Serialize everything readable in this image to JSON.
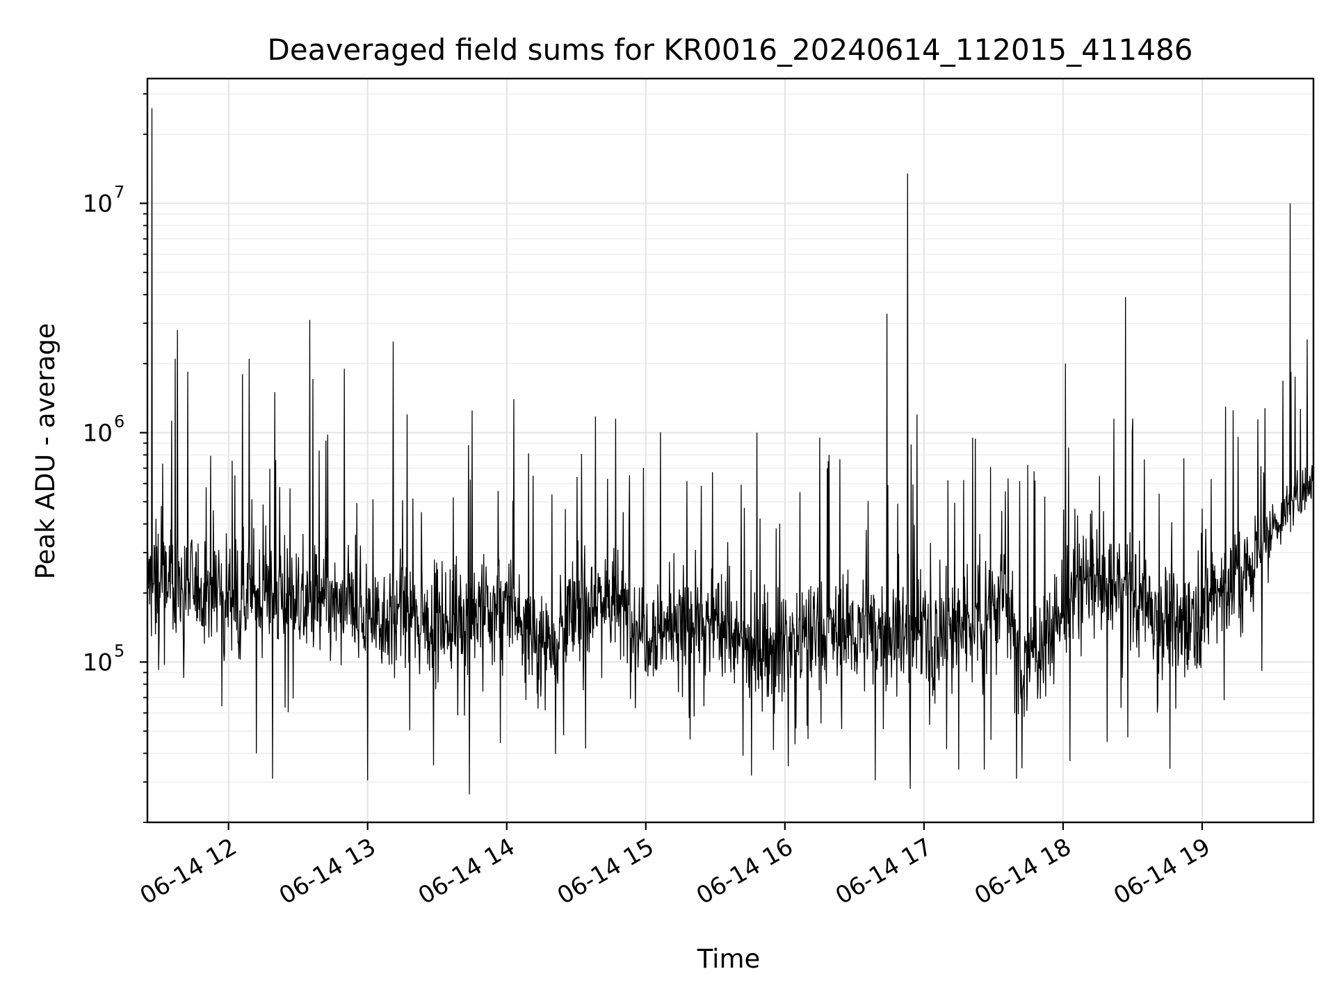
{
  "chart_data": {
    "type": "line",
    "title": "Deaveraged field sums for KR0016_20240614_112015_411486",
    "xlabel": "Time",
    "ylabel": "Peak ADU - average",
    "yscale": "log",
    "ylim": [
      20000,
      35000000
    ],
    "xlim": [
      "2024-06-14 11:25",
      "2024-06-14 19:48"
    ],
    "grid": true,
    "line_color": "#000000",
    "x_ticks": [
      {
        "time": "2024-06-14 12:00",
        "label": "06-14 12"
      },
      {
        "time": "2024-06-14 13:00",
        "label": "06-14 13"
      },
      {
        "time": "2024-06-14 14:00",
        "label": "06-14 14"
      },
      {
        "time": "2024-06-14 15:00",
        "label": "06-14 15"
      },
      {
        "time": "2024-06-14 16:00",
        "label": "06-14 16"
      },
      {
        "time": "2024-06-14 17:00",
        "label": "06-14 17"
      },
      {
        "time": "2024-06-14 18:00",
        "label": "06-14 18"
      },
      {
        "time": "2024-06-14 19:00",
        "label": "06-14 19"
      }
    ],
    "y_ticks": [
      {
        "value": 100000,
        "base": "10",
        "exp": "5"
      },
      {
        "value": 1000000,
        "base": "10",
        "exp": "6"
      },
      {
        "value": 10000000,
        "base": "10",
        "exp": "7"
      }
    ],
    "series": [
      {
        "baseline": [
          [
            "2024-06-14 11:25",
            230000
          ],
          [
            "2024-06-14 11:45",
            210000
          ],
          [
            "2024-06-14 12:05",
            200000
          ],
          [
            "2024-06-14 12:30",
            190000
          ],
          [
            "2024-06-14 13:00",
            160000
          ],
          [
            "2024-06-14 13:30",
            150000
          ],
          [
            "2024-06-14 14:00",
            175000
          ],
          [
            "2024-06-14 14:15",
            120000
          ],
          [
            "2024-06-14 14:40",
            200000
          ],
          [
            "2024-06-14 15:00",
            140000
          ],
          [
            "2024-06-14 15:30",
            150000
          ],
          [
            "2024-06-14 15:45",
            110000
          ],
          [
            "2024-06-14 16:10",
            130000
          ],
          [
            "2024-06-14 16:40",
            140000
          ],
          [
            "2024-06-14 17:00",
            130000
          ],
          [
            "2024-06-14 17:20",
            150000
          ],
          [
            "2024-06-14 17:35",
            200000
          ],
          [
            "2024-06-14 17:42",
            95000
          ],
          [
            "2024-06-14 17:55",
            140000
          ],
          [
            "2024-06-14 18:10",
            230000
          ],
          [
            "2024-06-14 18:30",
            200000
          ],
          [
            "2024-06-14 18:50",
            140000
          ],
          [
            "2024-06-14 19:05",
            200000
          ],
          [
            "2024-06-14 19:20",
            250000
          ],
          [
            "2024-06-14 19:30",
            380000
          ],
          [
            "2024-06-14 19:40",
            500000
          ],
          [
            "2024-06-14 19:48",
            650000
          ]
        ],
        "spikes": [
          [
            "2024-06-14 11:27",
            26000000
          ],
          [
            "2024-06-14 11:38",
            2800000
          ],
          [
            "2024-06-14 11:37",
            2100000
          ],
          [
            "2024-06-14 12:09",
            2100000
          ],
          [
            "2024-06-14 12:06",
            1800000
          ],
          [
            "2024-06-14 12:20",
            1500000
          ],
          [
            "2024-06-14 12:35",
            3100000
          ],
          [
            "2024-06-14 12:50",
            1900000
          ],
          [
            "2024-06-14 13:11",
            2500000
          ],
          [
            "2024-06-14 13:17",
            1200000
          ],
          [
            "2024-06-14 13:45",
            1250000
          ],
          [
            "2024-06-14 14:03",
            1400000
          ],
          [
            "2024-06-14 14:34",
            1100000
          ],
          [
            "2024-06-14 14:47",
            1150000
          ],
          [
            "2024-06-14 15:48",
            1000000
          ],
          [
            "2024-06-14 16:19",
            800000
          ],
          [
            "2024-06-14 16:44",
            3300000
          ],
          [
            "2024-06-14 16:53",
            13500000
          ],
          [
            "2024-06-14 16:57",
            1200000
          ],
          [
            "2024-06-14 17:21",
            950000
          ],
          [
            "2024-06-14 18:01",
            2000000
          ],
          [
            "2024-06-14 18:22",
            1150000
          ],
          [
            "2024-06-14 18:27",
            3900000
          ],
          [
            "2024-06-14 19:10",
            1300000
          ],
          [
            "2024-06-14 19:38",
            10000000
          ]
        ],
        "dips": [
          [
            "2024-06-14 12:12",
            40000
          ],
          [
            "2024-06-14 12:19",
            31000
          ],
          [
            "2024-06-14 13:00",
            30500
          ],
          [
            "2024-06-14 13:44",
            26500
          ],
          [
            "2024-06-14 14:34",
            42000
          ],
          [
            "2024-06-14 15:19",
            46000
          ],
          [
            "2024-06-14 15:42",
            39000
          ],
          [
            "2024-06-14 16:39",
            30500
          ],
          [
            "2024-06-14 16:54",
            28000
          ],
          [
            "2024-06-14 17:15",
            34000
          ],
          [
            "2024-06-14 17:26",
            34000
          ],
          [
            "2024-06-14 17:40",
            31000
          ],
          [
            "2024-06-14 18:03",
            37000
          ],
          [
            "2024-06-14 18:28",
            47000
          ]
        ]
      }
    ]
  }
}
